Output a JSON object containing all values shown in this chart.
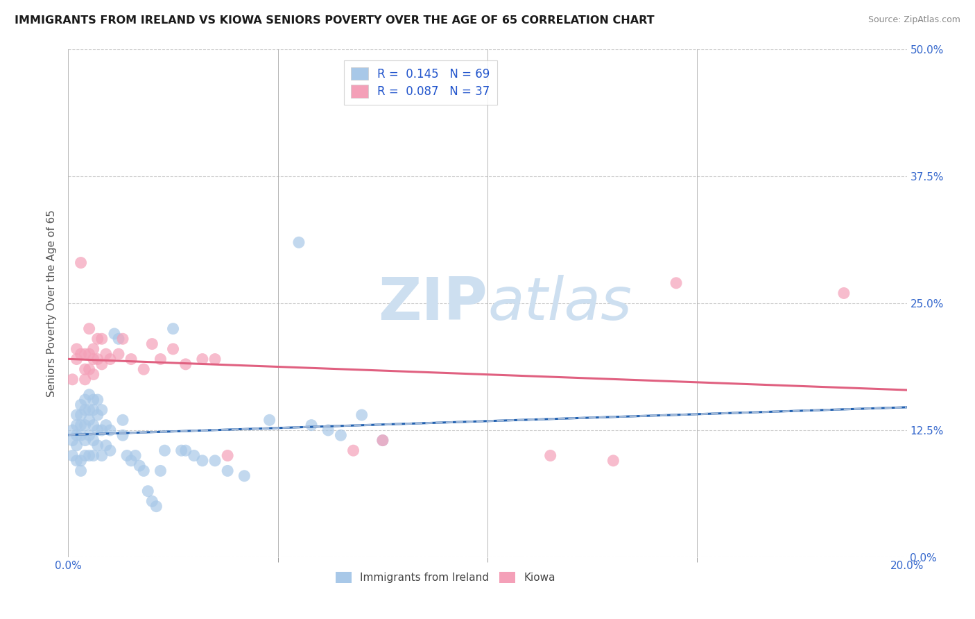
{
  "title": "IMMIGRANTS FROM IRELAND VS KIOWA SENIORS POVERTY OVER THE AGE OF 65 CORRELATION CHART",
  "source": "Source: ZipAtlas.com",
  "ylabel": "Seniors Poverty Over the Age of 65",
  "xlim": [
    0.0,
    0.2
  ],
  "ylim": [
    0.0,
    0.5
  ],
  "ireland_R": 0.145,
  "ireland_N": 69,
  "kiowa_R": 0.087,
  "kiowa_N": 37,
  "ireland_color": "#a8c8e8",
  "kiowa_color": "#f4a0b8",
  "ireland_line_color": "#2060b0",
  "kiowa_line_color": "#e06080",
  "kiowa_dash_color": "#a0b8d8",
  "legend_text_color": "#2255cc",
  "watermark_color": "#cddff0",
  "background_color": "#ffffff",
  "grid_color": "#cccccc",
  "tick_label_color": "#3366cc",
  "ireland_x": [
    0.001,
    0.001,
    0.001,
    0.002,
    0.002,
    0.002,
    0.002,
    0.002,
    0.003,
    0.003,
    0.003,
    0.003,
    0.003,
    0.003,
    0.004,
    0.004,
    0.004,
    0.004,
    0.004,
    0.005,
    0.005,
    0.005,
    0.005,
    0.005,
    0.006,
    0.006,
    0.006,
    0.006,
    0.006,
    0.007,
    0.007,
    0.007,
    0.007,
    0.008,
    0.008,
    0.008,
    0.009,
    0.009,
    0.01,
    0.01,
    0.011,
    0.012,
    0.013,
    0.013,
    0.014,
    0.015,
    0.016,
    0.017,
    0.018,
    0.019,
    0.02,
    0.021,
    0.022,
    0.023,
    0.025,
    0.027,
    0.028,
    0.03,
    0.032,
    0.035,
    0.038,
    0.042,
    0.048,
    0.055,
    0.058,
    0.062,
    0.065,
    0.07,
    0.075
  ],
  "ireland_y": [
    0.125,
    0.115,
    0.1,
    0.14,
    0.13,
    0.12,
    0.11,
    0.095,
    0.15,
    0.14,
    0.13,
    0.12,
    0.095,
    0.085,
    0.155,
    0.145,
    0.13,
    0.115,
    0.1,
    0.16,
    0.145,
    0.135,
    0.12,
    0.1,
    0.155,
    0.145,
    0.13,
    0.115,
    0.1,
    0.155,
    0.14,
    0.125,
    0.11,
    0.145,
    0.125,
    0.1,
    0.13,
    0.11,
    0.125,
    0.105,
    0.22,
    0.215,
    0.135,
    0.12,
    0.1,
    0.095,
    0.1,
    0.09,
    0.085,
    0.065,
    0.055,
    0.05,
    0.085,
    0.105,
    0.225,
    0.105,
    0.105,
    0.1,
    0.095,
    0.095,
    0.085,
    0.08,
    0.135,
    0.31,
    0.13,
    0.125,
    0.12,
    0.14,
    0.115
  ],
  "kiowa_x": [
    0.001,
    0.002,
    0.002,
    0.003,
    0.003,
    0.004,
    0.004,
    0.004,
    0.005,
    0.005,
    0.005,
    0.006,
    0.006,
    0.006,
    0.007,
    0.007,
    0.008,
    0.008,
    0.009,
    0.01,
    0.012,
    0.013,
    0.015,
    0.018,
    0.02,
    0.022,
    0.025,
    0.028,
    0.032,
    0.035,
    0.038,
    0.068,
    0.075,
    0.115,
    0.13,
    0.145,
    0.185
  ],
  "kiowa_y": [
    0.175,
    0.205,
    0.195,
    0.29,
    0.2,
    0.2,
    0.185,
    0.175,
    0.225,
    0.2,
    0.185,
    0.205,
    0.195,
    0.18,
    0.215,
    0.195,
    0.215,
    0.19,
    0.2,
    0.195,
    0.2,
    0.215,
    0.195,
    0.185,
    0.21,
    0.195,
    0.205,
    0.19,
    0.195,
    0.195,
    0.1,
    0.105,
    0.115,
    0.1,
    0.095,
    0.27,
    0.26
  ]
}
